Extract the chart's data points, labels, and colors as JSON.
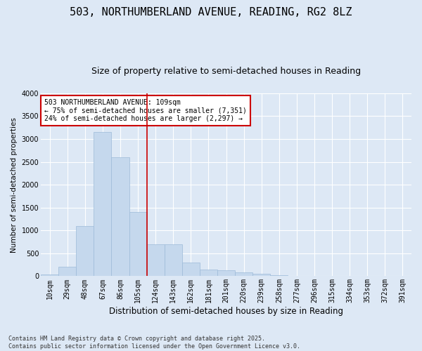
{
  "title": "503, NORTHUMBERLAND AVENUE, READING, RG2 8LZ",
  "subtitle": "Size of property relative to semi-detached houses in Reading",
  "xlabel": "Distribution of semi-detached houses by size in Reading",
  "ylabel": "Number of semi-detached properties",
  "categories": [
    "10sqm",
    "29sqm",
    "48sqm",
    "67sqm",
    "86sqm",
    "105sqm",
    "124sqm",
    "143sqm",
    "162sqm",
    "181sqm",
    "201sqm",
    "220sqm",
    "239sqm",
    "258sqm",
    "277sqm",
    "296sqm",
    "315sqm",
    "334sqm",
    "353sqm",
    "372sqm",
    "391sqm"
  ],
  "values": [
    30,
    200,
    1100,
    3150,
    2600,
    1400,
    700,
    700,
    300,
    150,
    130,
    90,
    45,
    15,
    0,
    0,
    0,
    0,
    0,
    0,
    0
  ],
  "bar_color": "#c5d8ed",
  "bar_edgecolor": "#9dbbd9",
  "vline_x": 5.5,
  "vline_color": "#cc0000",
  "annotation_text": "503 NORTHUMBERLAND AVENUE: 109sqm\n← 75% of semi-detached houses are smaller (7,351)\n24% of semi-detached houses are larger (2,297) →",
  "annotation_box_facecolor": "#ffffff",
  "annotation_box_edgecolor": "#cc0000",
  "ylim": [
    0,
    4000
  ],
  "yticks": [
    0,
    500,
    1000,
    1500,
    2000,
    2500,
    3000,
    3500,
    4000
  ],
  "background_color": "#dde8f5",
  "grid_color": "#ffffff",
  "footer": "Contains HM Land Registry data © Crown copyright and database right 2025.\nContains public sector information licensed under the Open Government Licence v3.0.",
  "title_fontsize": 11,
  "subtitle_fontsize": 9,
  "xlabel_fontsize": 8.5,
  "ylabel_fontsize": 7.5,
  "tick_fontsize": 7,
  "annotation_fontsize": 7,
  "footer_fontsize": 6
}
